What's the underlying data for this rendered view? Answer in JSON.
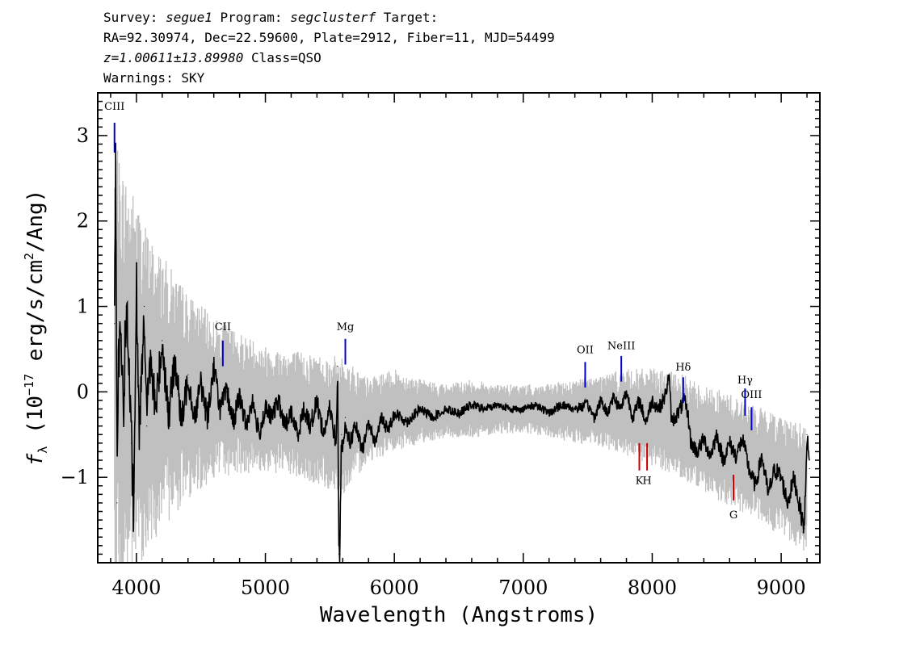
{
  "header": {
    "line1": {
      "a": "Survey: ",
      "b": "segue1",
      "c": " Program: ",
      "d": "segclusterf",
      "e": " Target:"
    },
    "line2": "RA=92.30974, Dec=22.59600, Plate=2912, Fiber=11, MJD=54499",
    "line3": {
      "a": "z=1.00611±13.89980",
      "b": " Class=QSO"
    },
    "line4": "Warnings: SKY"
  },
  "colors": {
    "error_band": "#c0c0c0",
    "flux": "#000000",
    "emission_line": "#0000cc",
    "absorption_line": "#cc0000"
  },
  "chart_data": {
    "type": "line",
    "xlabel": "Wavelength (Angstroms)",
    "ylabel": {
      "f": "f",
      "sub": "λ",
      "mid": " (10",
      "exp": "−17",
      "unit1": " erg/s/cm",
      "exp2": "2",
      "unit2": "/Ang)"
    },
    "xlim": [
      3700,
      9300
    ],
    "ylim": [
      -2.0,
      3.5
    ],
    "xticks": [
      4000,
      5000,
      6000,
      7000,
      8000,
      9000
    ],
    "xtick_labels": [
      "4000",
      "5000",
      "6000",
      "7000",
      "8000",
      "9000"
    ],
    "yticks": [
      -1,
      0,
      1,
      2,
      3
    ],
    "ytick_labels": [
      "−1",
      "0",
      "1",
      "2",
      "3"
    ],
    "series": [
      {
        "role": "error_band",
        "x": [
          3830,
          3900,
          4000,
          4100,
          4200,
          4400,
          4600,
          4800,
          5000,
          5200,
          5400,
          5600,
          5800,
          6000,
          6200,
          6400,
          6600,
          6800,
          7000,
          7200,
          7400,
          7600,
          7800,
          8000,
          8200,
          8400,
          8600,
          8800,
          9000,
          9200
        ],
        "upper": [
          2.6,
          2.3,
          2.0,
          1.6,
          1.4,
          1.0,
          0.75,
          0.6,
          0.45,
          0.4,
          0.35,
          0.3,
          0.1,
          0.2,
          0.1,
          0.05,
          0.1,
          0.05,
          0.05,
          0.05,
          0.1,
          0.15,
          0.2,
          0.2,
          0.15,
          0.0,
          -0.1,
          -0.25,
          -0.35,
          -0.5
        ],
        "lower": [
          -2.0,
          -2.0,
          -1.8,
          -1.6,
          -1.4,
          -1.1,
          -0.9,
          -0.85,
          -0.85,
          -0.9,
          -1.0,
          -1.1,
          -0.75,
          -0.65,
          -0.55,
          -0.5,
          -0.5,
          -0.45,
          -0.45,
          -0.5,
          -0.55,
          -0.6,
          -0.7,
          -0.8,
          -0.9,
          -1.1,
          -1.25,
          -1.4,
          -1.6,
          -1.8
        ]
      },
      {
        "role": "flux",
        "x": [
          3830,
          3840,
          3850,
          3860,
          3880,
          3900,
          3920,
          3940,
          3960,
          3980,
          4000,
          4020,
          4040,
          4060,
          4080,
          4100,
          4150,
          4200,
          4250,
          4300,
          4350,
          4400,
          4450,
          4500,
          4550,
          4600,
          4650,
          4700,
          4750,
          4800,
          4850,
          4900,
          4950,
          5000,
          5050,
          5100,
          5150,
          5200,
          5250,
          5300,
          5350,
          5400,
          5450,
          5500,
          5550,
          5560,
          5570,
          5577,
          5590,
          5600,
          5620,
          5650,
          5700,
          5750,
          5800,
          5850,
          5900,
          5950,
          6000,
          6100,
          6200,
          6300,
          6400,
          6500,
          6600,
          6700,
          6800,
          6900,
          7000,
          7100,
          7200,
          7300,
          7400,
          7500,
          7550,
          7600,
          7650,
          7700,
          7750,
          7800,
          7850,
          7900,
          7950,
          8000,
          8050,
          8100,
          8130,
          8150,
          8200,
          8250,
          8280,
          8300,
          8350,
          8400,
          8450,
          8500,
          8550,
          8600,
          8650,
          8700,
          8750,
          8800,
          8850,
          8900,
          8950,
          9000,
          9050,
          9100,
          9150,
          9180,
          9200,
          9220
        ],
        "y": [
          0.8,
          2.7,
          -1.3,
          0.3,
          0.6,
          -0.2,
          1.0,
          0.4,
          -0.6,
          -1.5,
          1.3,
          -0.5,
          0.3,
          1.0,
          -0.4,
          0.4,
          -0.2,
          0.6,
          -0.3,
          0.4,
          -0.4,
          0.2,
          -0.3,
          0.1,
          -0.3,
          0.3,
          -0.2,
          0.0,
          -0.35,
          -0.05,
          -0.4,
          -0.1,
          -0.5,
          -0.2,
          -0.3,
          -0.1,
          -0.4,
          -0.25,
          -0.5,
          -0.2,
          -0.4,
          -0.1,
          -0.5,
          -0.2,
          -0.6,
          0.3,
          -1.9,
          -1.9,
          -0.5,
          -0.7,
          -0.3,
          -0.6,
          -0.4,
          -0.7,
          -0.35,
          -0.6,
          -0.3,
          -0.45,
          -0.25,
          -0.35,
          -0.2,
          -0.3,
          -0.2,
          -0.25,
          -0.15,
          -0.2,
          -0.15,
          -0.2,
          -0.2,
          -0.15,
          -0.25,
          -0.15,
          -0.2,
          -0.15,
          -0.3,
          -0.1,
          -0.25,
          -0.05,
          -0.2,
          0.0,
          -0.3,
          -0.1,
          -0.35,
          -0.1,
          -0.2,
          -0.05,
          0.2,
          -0.35,
          -0.25,
          -0.1,
          -0.3,
          -0.6,
          -0.7,
          -0.55,
          -0.75,
          -0.5,
          -0.8,
          -0.6,
          -0.75,
          -0.55,
          -0.9,
          -1.1,
          -0.75,
          -1.2,
          -0.9,
          -1.0,
          -1.3,
          -1.0,
          -1.4,
          -1.6,
          -0.5,
          -0.9
        ]
      }
    ],
    "emission_lines": [
      {
        "label": "CIII",
        "x": 3830,
        "y_top": 3.15,
        "y_bot": 2.8,
        "label_y": 3.3
      },
      {
        "label": "CII",
        "x": 4670,
        "y_top": 0.6,
        "y_bot": 0.3,
        "label_y": 0.72
      },
      {
        "label": "Mg",
        "x": 5620,
        "y_top": 0.62,
        "y_bot": 0.32,
        "label_y": 0.72
      },
      {
        "label": "OII",
        "x": 7480,
        "y_top": 0.35,
        "y_bot": 0.05,
        "label_y": 0.45
      },
      {
        "label": "NeIII",
        "x": 7760,
        "y_top": 0.42,
        "y_bot": 0.12,
        "label_y": 0.5
      },
      {
        "label": "Hδ",
        "x": 8240,
        "y_top": 0.17,
        "y_bot": -0.13,
        "label_y": 0.25
      },
      {
        "label": "Hγ",
        "x": 8720,
        "y_top": 0.04,
        "y_bot": -0.28,
        "label_y": 0.1
      },
      {
        "label": "OIII",
        "x": 8770,
        "y_top": -0.18,
        "y_bot": -0.45,
        "label_y": -0.07
      }
    ],
    "absorption_lines": [
      {
        "label": "K",
        "x": 7900,
        "y_top": -0.6,
        "y_bot": -0.92,
        "label_y": -1.08
      },
      {
        "label": "H",
        "x": 7960,
        "y_top": -0.6,
        "y_bot": -0.92,
        "label_y": -1.08
      },
      {
        "label": "G",
        "x": 8630,
        "y_top": -0.97,
        "y_bot": -1.27,
        "label_y": -1.48
      }
    ]
  }
}
